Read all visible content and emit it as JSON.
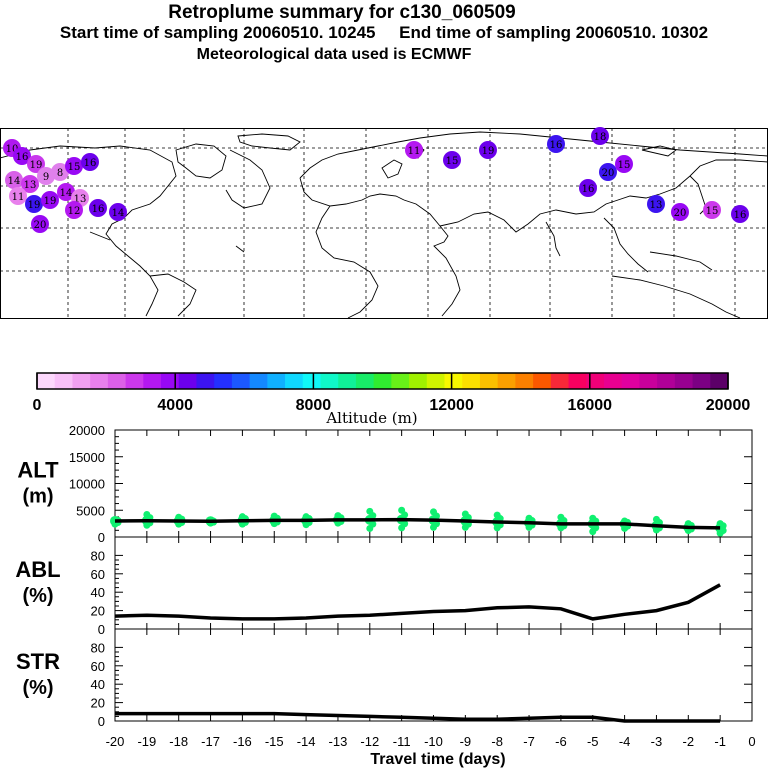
{
  "header": {
    "title": "Retroplume summary for c130_060509",
    "subtitle": "Start time of sampling 20060510. 10245     End time of sampling 20060510. 10302",
    "met": "Meteorological data used is ECMWF"
  },
  "colorbar": {
    "ticks": [
      "0",
      "4000",
      "8000",
      "12000",
      "16000",
      "20000"
    ],
    "label": "Altitude (m)",
    "colors": [
      "#fcd8fc",
      "#f8c0f8",
      "#f0a0f0",
      "#e880ec",
      "#dc60e8",
      "#cc38ec",
      "#b418f0",
      "#9808f4",
      "#6c00ec",
      "#3c14f0",
      "#2430ff",
      "#1c58ff",
      "#1488ff",
      "#10b0ff",
      "#10d8ff",
      "#10f8f8",
      "#10f8c8",
      "#10f098",
      "#18ec68",
      "#30ec30",
      "#68f018",
      "#a0f000",
      "#d0f400",
      "#f8f800",
      "#fce000",
      "#fcc000",
      "#fca000",
      "#fc8000",
      "#fc5800",
      "#f82838",
      "#f80060",
      "#f00078",
      "#e80090",
      "#e000a0",
      "#c8009c",
      "#b00098",
      "#980090",
      "#7c0084",
      "#5c0068"
    ]
  },
  "map_markers": [
    {
      "label": "10",
      "color": "#b018f0"
    },
    {
      "label": "16",
      "color": "#9808f4"
    },
    {
      "label": "19",
      "color": "#c838ec"
    },
    {
      "label": "14",
      "color": "#d860e8"
    },
    {
      "label": "13",
      "color": "#cc38ec"
    },
    {
      "label": "9",
      "color": "#e080ec"
    },
    {
      "label": "8",
      "color": "#e080ec"
    },
    {
      "label": "15",
      "color": "#9808f4"
    },
    {
      "label": "16",
      "color": "#6c00ec"
    },
    {
      "label": "11",
      "color": "#e880ec"
    },
    {
      "label": "19",
      "color": "#3c14f0"
    },
    {
      "label": "19",
      "color": "#9808f4"
    },
    {
      "label": "14",
      "color": "#b418f0"
    },
    {
      "label": "13",
      "color": "#e880ec"
    },
    {
      "label": "16",
      "color": "#6c00ec"
    },
    {
      "label": "14",
      "color": "#6c00ec"
    },
    {
      "label": "20",
      "color": "#9808f4"
    },
    {
      "label": "12",
      "color": "#b418f0"
    },
    {
      "label": "11",
      "color": "#b418f0"
    },
    {
      "label": "15",
      "color": "#6c00ec"
    },
    {
      "label": "19",
      "color": "#6c00ec"
    },
    {
      "label": "16",
      "color": "#3c14f0"
    },
    {
      "label": "18",
      "color": "#6c00ec"
    },
    {
      "label": "20",
      "color": "#3c14f0"
    },
    {
      "label": "15",
      "color": "#9808f4"
    },
    {
      "label": "16",
      "color": "#6c00ec"
    },
    {
      "label": "13",
      "color": "#3c14f0"
    },
    {
      "label": "20",
      "color": "#9808f4"
    },
    {
      "label": "15",
      "color": "#cc38ec"
    },
    {
      "label": "16",
      "color": "#6c00ec"
    }
  ],
  "chart_data": [
    {
      "type": "scatter",
      "panel": "ALT",
      "ylabel": "ALT",
      "yunit": "(m)",
      "ylim": [
        0,
        20000
      ],
      "yticks": [
        "20000",
        "15000",
        "10000",
        "5000",
        "0"
      ],
      "x": [
        -20,
        -19,
        -18,
        -17,
        -16,
        -15,
        -14,
        -13,
        -12,
        -11,
        -10,
        -9,
        -8,
        -7,
        -6,
        -5,
        -4,
        -3,
        -2,
        -1
      ],
      "mean": [
        3000,
        3050,
        3000,
        2950,
        3050,
        3100,
        3100,
        3200,
        3200,
        3250,
        3150,
        3000,
        2800,
        2650,
        2450,
        2450,
        2450,
        2100,
        1800,
        1700
      ],
      "points_max": [
        3200,
        4200,
        3700,
        3000,
        3800,
        3900,
        3800,
        4000,
        4800,
        5000,
        4700,
        4300,
        4100,
        3500,
        3700,
        3500,
        3000,
        3300,
        2500,
        2500
      ],
      "points_min": [
        2400,
        2200,
        2400,
        2600,
        2400,
        2500,
        2300,
        2600,
        1600,
        1700,
        1800,
        1800,
        1700,
        1800,
        1700,
        1000,
        1600,
        1300,
        1200,
        700
      ],
      "marker_color": "#10f070"
    },
    {
      "type": "line",
      "panel": "ABL",
      "ylabel": "ABL",
      "yunit": "(%)",
      "ylim": [
        0,
        100
      ],
      "yticks": [
        "80",
        "60",
        "40",
        "20",
        "0"
      ],
      "x": [
        -20,
        -19,
        -18,
        -17,
        -16,
        -15,
        -14,
        -13,
        -12,
        -11,
        -10,
        -9,
        -8,
        -7,
        -6,
        -5,
        -4,
        -3,
        -2,
        -1
      ],
      "values": [
        14,
        15,
        14,
        12,
        11,
        11,
        12,
        14,
        15,
        17,
        19,
        20,
        23,
        24,
        22,
        11,
        16,
        20,
        29,
        48
      ]
    },
    {
      "type": "line",
      "panel": "STR",
      "ylabel": "STR",
      "yunit": "(%)",
      "ylim": [
        0,
        100
      ],
      "yticks": [
        "80",
        "60",
        "40",
        "20",
        "0"
      ],
      "x": [
        -20,
        -19,
        -18,
        -17,
        -16,
        -15,
        -14,
        -13,
        -12,
        -11,
        -10,
        -9,
        -8,
        -7,
        -6,
        -5,
        -4,
        -3,
        -2,
        -1
      ],
      "values": [
        8,
        8,
        8,
        8,
        8,
        8,
        7,
        6,
        5,
        4,
        3,
        2,
        2,
        3,
        4,
        4,
        0,
        0,
        0,
        0
      ]
    }
  ],
  "xaxis": {
    "ticks": [
      "-20",
      "-19",
      "-18",
      "-17",
      "-16",
      "-15",
      "-14",
      "-13",
      "-12",
      "-11",
      "-10",
      "-9",
      "-8",
      "-7",
      "-6",
      "-5",
      "-4",
      "-3",
      "-2",
      "-1",
      "0"
    ],
    "label": "Travel time (days)"
  }
}
